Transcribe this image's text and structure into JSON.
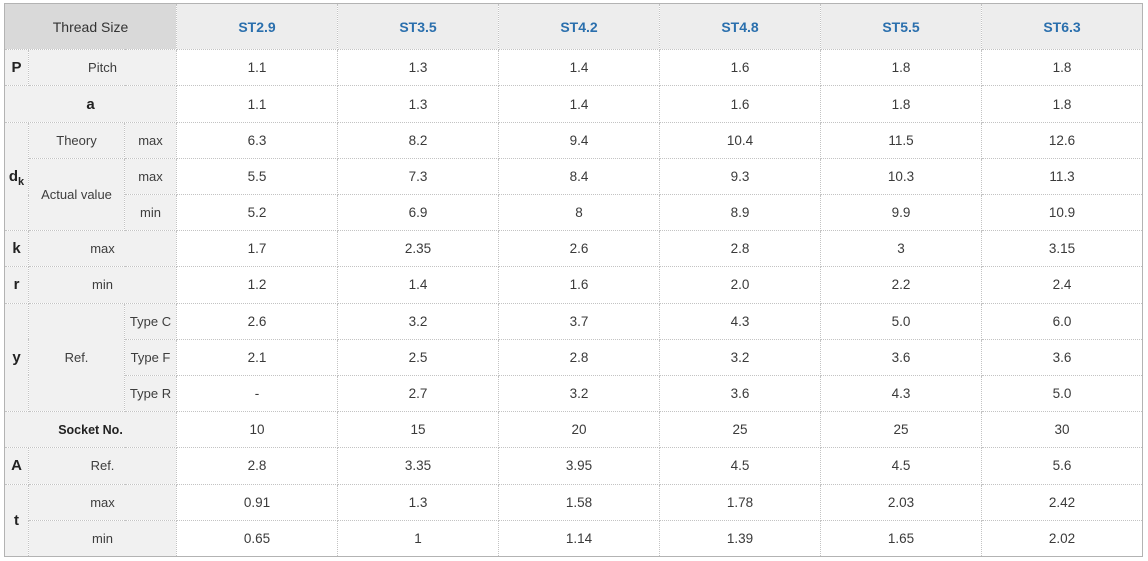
{
  "colors": {
    "header_text_blue": "#2a6fad",
    "corner_bg": "#d9d9d9",
    "label_bg": "#f1f1f1",
    "size_header_bg": "#ededed",
    "value_bg": "#ffffff",
    "border_dotted": "#c3c3c3"
  },
  "chart_data": {
    "type": "table",
    "title": "Thread Size",
    "columns": [
      "ST2.9",
      "ST3.5",
      "ST4.2",
      "ST4.8",
      "ST5.5",
      "ST6.3"
    ],
    "rows": [
      {
        "param": "P",
        "param_main": "P",
        "label": "Pitch",
        "values": [
          "1.1",
          "1.3",
          "1.4",
          "1.6",
          "1.8",
          "1.8"
        ]
      },
      {
        "param": "a",
        "param_main": "a",
        "values": [
          "1.1",
          "1.3",
          "1.4",
          "1.6",
          "1.8",
          "1.8"
        ]
      },
      {
        "param": "dk",
        "param_main": "d",
        "param_sub": "k",
        "label": "Theory",
        "sub": "max",
        "values": [
          "6.3",
          "8.2",
          "9.4",
          "10.4",
          "11.5",
          "12.6"
        ]
      },
      {
        "param": "dk",
        "label": "Actual value",
        "sub": "max",
        "values": [
          "5.5",
          "7.3",
          "8.4",
          "9.3",
          "10.3",
          "11.3"
        ]
      },
      {
        "param": "dk",
        "label": "Actual value",
        "sub": "min",
        "values": [
          "5.2",
          "6.9",
          "8",
          "8.9",
          "9.9",
          "10.9"
        ]
      },
      {
        "param": "k",
        "param_main": "k",
        "label": "max",
        "values": [
          "1.7",
          "2.35",
          "2.6",
          "2.8",
          "3",
          "3.15"
        ]
      },
      {
        "param": "r",
        "param_main": "r",
        "label": "min",
        "values": [
          "1.2",
          "1.4",
          "1.6",
          "2.0",
          "2.2",
          "2.4"
        ]
      },
      {
        "param": "y",
        "param_main": "y",
        "label": "Ref.",
        "sub": "Type C",
        "values": [
          "2.6",
          "3.2",
          "3.7",
          "4.3",
          "5.0",
          "6.0"
        ]
      },
      {
        "param": "y",
        "label": "Ref.",
        "sub": "Type F",
        "values": [
          "2.1",
          "2.5",
          "2.8",
          "3.2",
          "3.6",
          "3.6"
        ]
      },
      {
        "param": "y",
        "label": "Ref.",
        "sub": "Type R",
        "values": [
          "-",
          "2.7",
          "3.2",
          "3.6",
          "4.3",
          "5.0"
        ]
      },
      {
        "param": "Socket No.",
        "param_main": "Socket No.",
        "values": [
          "10",
          "15",
          "20",
          "25",
          "25",
          "30"
        ]
      },
      {
        "param": "A",
        "param_main": "A",
        "label": "Ref.",
        "values": [
          "2.8",
          "3.35",
          "3.95",
          "4.5",
          "4.5",
          "5.6"
        ]
      },
      {
        "param": "t",
        "param_main": "t",
        "label": "max",
        "values": [
          "0.91",
          "1.3",
          "1.58",
          "1.78",
          "2.03",
          "2.42"
        ]
      },
      {
        "param": "t",
        "label": "min",
        "values": [
          "0.65",
          "1",
          "1.14",
          "1.39",
          "1.65",
          "2.02"
        ]
      }
    ]
  }
}
